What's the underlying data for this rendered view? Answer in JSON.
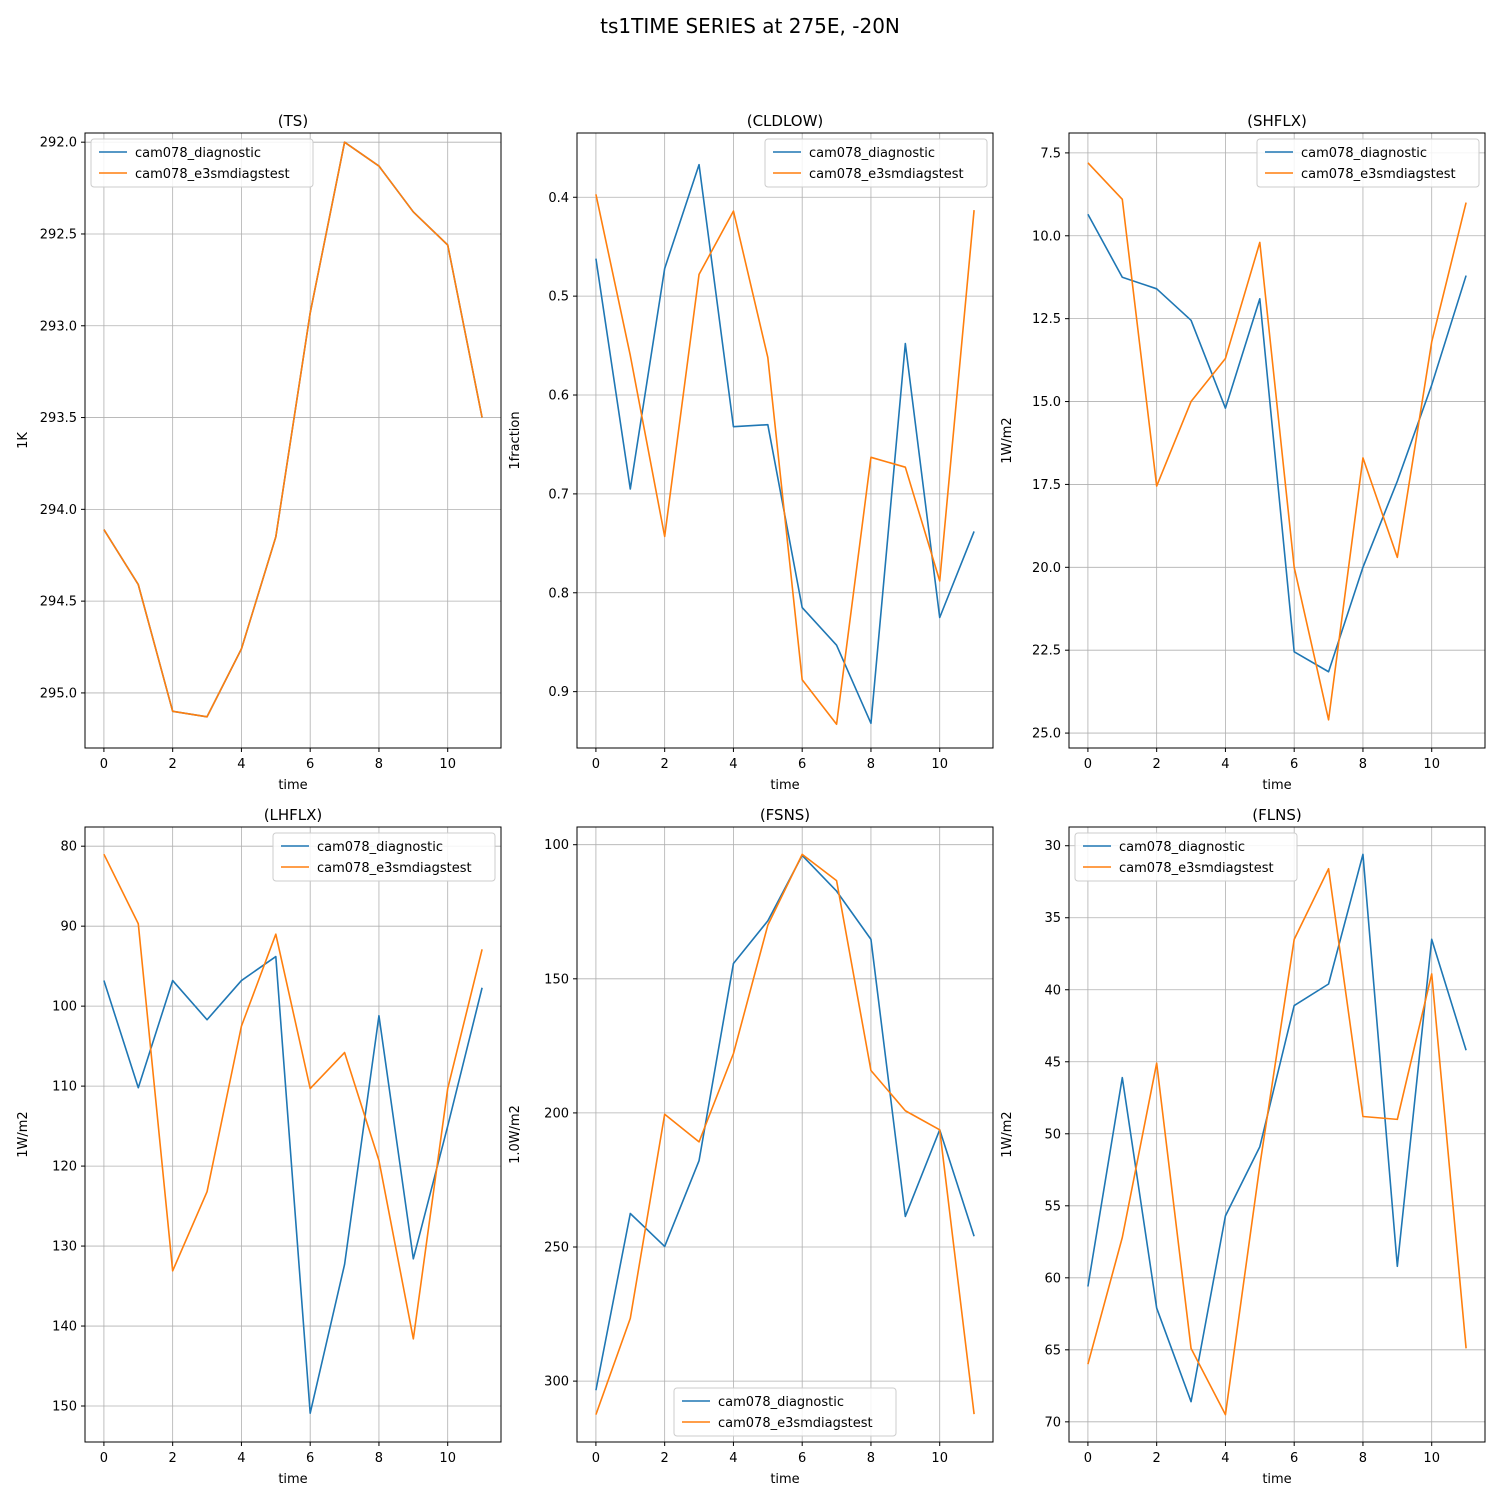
{
  "figure": {
    "title": "ts1TIME SERIES at 275E, -20N"
  },
  "colors": {
    "cam078_diagnostic": "#1f77b4",
    "cam078_e3smdiagstest": "#ff7f0e"
  },
  "chart_data": [
    {
      "type": "line",
      "title": "(TS)",
      "xlabel": "time",
      "ylabel": "1K",
      "y_inverted": true,
      "xlim": [
        -0.55,
        11.55
      ],
      "ylim": [
        291.95,
        295.3
      ],
      "xticks": [
        0,
        2,
        4,
        6,
        8,
        10
      ],
      "yticks": [
        292.0,
        292.5,
        293.0,
        293.5,
        294.0,
        294.5,
        295.0
      ],
      "ytick_labels": [
        "292.0",
        "292.5",
        "293.0",
        "293.5",
        "294.0",
        "294.5",
        "295.0"
      ],
      "legend": "upper-left",
      "grid": true,
      "x": [
        0,
        1,
        2,
        3,
        4,
        5,
        6,
        7,
        8,
        9,
        10,
        11
      ],
      "series": [
        {
          "name": "cam078_diagnostic",
          "values": [
            294.11,
            294.41,
            295.1,
            295.13,
            294.76,
            294.15,
            292.93,
            292.0,
            292.13,
            292.38,
            292.56,
            293.5
          ]
        },
        {
          "name": "cam078_e3smdiagstest",
          "values": [
            294.11,
            294.41,
            295.1,
            295.13,
            294.76,
            294.15,
            292.93,
            292.0,
            292.13,
            292.38,
            292.56,
            293.5
          ]
        }
      ]
    },
    {
      "type": "line",
      "title": "(CLDLOW)",
      "xlabel": "time",
      "ylabel": "1fraction",
      "y_inverted": true,
      "xlim": [
        -0.55,
        11.55
      ],
      "ylim": [
        0.335,
        0.957
      ],
      "xticks": [
        0,
        2,
        4,
        6,
        8,
        10
      ],
      "yticks": [
        0.4,
        0.5,
        0.6,
        0.7,
        0.8,
        0.9
      ],
      "ytick_labels": [
        "0.4",
        "0.5",
        "0.6",
        "0.7",
        "0.8",
        "0.9"
      ],
      "legend": "upper-right",
      "grid": true,
      "x": [
        0,
        1,
        2,
        3,
        4,
        5,
        6,
        7,
        8,
        9,
        10,
        11
      ],
      "series": [
        {
          "name": "cam078_diagnostic",
          "values": [
            0.462,
            0.695,
            0.472,
            0.367,
            0.632,
            0.63,
            0.815,
            0.853,
            0.932,
            0.548,
            0.825,
            0.738
          ]
        },
        {
          "name": "cam078_e3smdiagstest",
          "values": [
            0.397,
            0.56,
            0.743,
            0.478,
            0.414,
            0.562,
            0.888,
            0.933,
            0.663,
            0.673,
            0.788,
            0.413
          ]
        }
      ]
    },
    {
      "type": "line",
      "title": "(SHFLX)",
      "xlabel": "time",
      "ylabel": "1W/m2",
      "y_inverted": true,
      "xlim": [
        -0.55,
        11.55
      ],
      "ylim": [
        6.9,
        25.45
      ],
      "xticks": [
        0,
        2,
        4,
        6,
        8,
        10
      ],
      "yticks": [
        7.5,
        10.0,
        12.5,
        15.0,
        17.5,
        20.0,
        22.5,
        25.0
      ],
      "ytick_labels": [
        "7.5",
        "10.0",
        "12.5",
        "15.0",
        "17.5",
        "20.0",
        "22.5",
        "25.0"
      ],
      "legend": "upper-right",
      "grid": true,
      "x": [
        0,
        1,
        2,
        3,
        4,
        5,
        6,
        7,
        8,
        9,
        10,
        11
      ],
      "series": [
        {
          "name": "cam078_diagnostic",
          "values": [
            9.35,
            11.25,
            11.6,
            12.55,
            15.2,
            11.9,
            22.55,
            23.15,
            20.0,
            17.4,
            14.5,
            11.2
          ]
        },
        {
          "name": "cam078_e3smdiagstest",
          "values": [
            7.8,
            8.9,
            17.55,
            15.0,
            13.7,
            10.2,
            20.0,
            24.6,
            16.7,
            19.7,
            13.2,
            9.0
          ]
        }
      ]
    },
    {
      "type": "line",
      "title": "(LHFLX)",
      "xlabel": "time",
      "ylabel": "1W/m2",
      "y_inverted": true,
      "xlim": [
        -0.55,
        11.55
      ],
      "ylim": [
        77.6,
        154.5
      ],
      "xticks": [
        0,
        2,
        4,
        6,
        8,
        10
      ],
      "yticks": [
        80,
        90,
        100,
        110,
        120,
        130,
        140,
        150
      ],
      "ytick_labels": [
        "80",
        "90",
        "100",
        "110",
        "120",
        "130",
        "140",
        "150"
      ],
      "legend": "upper-right",
      "grid": true,
      "x": [
        0,
        1,
        2,
        3,
        4,
        5,
        6,
        7,
        8,
        9,
        10,
        11
      ],
      "series": [
        {
          "name": "cam078_diagnostic",
          "values": [
            96.8,
            110.2,
            96.8,
            101.7,
            96.8,
            93.8,
            150.9,
            132.3,
            101.2,
            131.6,
            115.0,
            97.7
          ]
        },
        {
          "name": "cam078_e3smdiagstest",
          "values": [
            81.0,
            89.7,
            133.1,
            123.2,
            102.5,
            91.0,
            110.3,
            105.8,
            119.3,
            141.6,
            110.3,
            92.9
          ]
        }
      ]
    },
    {
      "type": "line",
      "title": "(FSNS)",
      "xlabel": "time",
      "ylabel": "1.0W/m2",
      "y_inverted": true,
      "xlim": [
        -0.55,
        11.55
      ],
      "ylim": [
        93.4,
        322.7
      ],
      "xticks": [
        0,
        2,
        4,
        6,
        8,
        10
      ],
      "yticks": [
        100,
        150,
        200,
        250,
        300
      ],
      "ytick_labels": [
        "100",
        "150",
        "200",
        "250",
        "300"
      ],
      "legend": "lower-center",
      "grid": true,
      "x": [
        0,
        1,
        2,
        3,
        4,
        5,
        6,
        7,
        8,
        9,
        10,
        11
      ],
      "series": [
        {
          "name": "cam078_diagnostic",
          "values": [
            303.4,
            237.5,
            249.8,
            217.8,
            144.3,
            128.4,
            104.0,
            117.3,
            135.3,
            238.6,
            206.3,
            246.0
          ]
        },
        {
          "name": "cam078_e3smdiagstest",
          "values": [
            312.5,
            276.6,
            200.5,
            210.8,
            177.9,
            130.0,
            103.6,
            113.4,
            184.2,
            199.2,
            206.3,
            312.3
          ]
        }
      ]
    },
    {
      "type": "line",
      "title": "(FLNS)",
      "xlabel": "time",
      "ylabel": "1W/m2",
      "y_inverted": true,
      "xlim": [
        -0.55,
        11.55
      ],
      "ylim": [
        28.7,
        71.4
      ],
      "xticks": [
        0,
        2,
        4,
        6,
        8,
        10
      ],
      "yticks": [
        30,
        35,
        40,
        45,
        50,
        55,
        60,
        65,
        70
      ],
      "ytick_labels": [
        "30",
        "35",
        "40",
        "45",
        "50",
        "55",
        "60",
        "65",
        "70"
      ],
      "legend": "upper-left",
      "grid": true,
      "x": [
        0,
        1,
        2,
        3,
        4,
        5,
        6,
        7,
        8,
        9,
        10,
        11
      ],
      "series": [
        {
          "name": "cam078_diagnostic",
          "values": [
            60.6,
            46.1,
            62.1,
            68.6,
            55.7,
            50.9,
            41.1,
            39.6,
            30.6,
            59.2,
            36.5,
            44.2
          ]
        },
        {
          "name": "cam078_e3smdiagstest",
          "values": [
            66.0,
            57.2,
            45.1,
            64.9,
            69.5,
            52.2,
            36.5,
            31.6,
            48.8,
            49.0,
            38.9,
            64.9
          ]
        }
      ]
    }
  ]
}
